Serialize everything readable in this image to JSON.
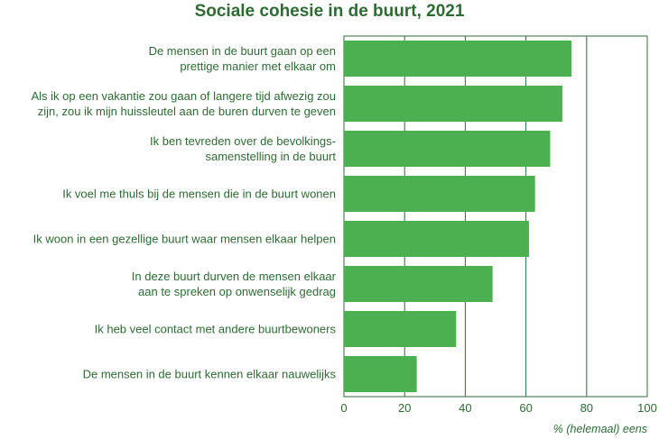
{
  "chart_data": {
    "type": "bar",
    "orientation": "horizontal",
    "title": "Sociale cohesie in de buurt, 2021",
    "xlabel": "% (helemaal) eens",
    "ylabel": "",
    "xlim": [
      0,
      100
    ],
    "xticks": [
      0,
      20,
      40,
      60,
      80,
      100
    ],
    "grid": true,
    "bar_color": "#4caf50",
    "text_color": "#2e6b34",
    "categories": [
      [
        "De mensen in de buurt gaan op een",
        "prettige manier met elkaar om"
      ],
      [
        "Als ik op een vakantie zou gaan of langere tijd afwezig zou",
        "zijn, zou ik mijn huissleutel aan de buren durven te geven"
      ],
      [
        "Ik ben tevreden over de  bevolkings-",
        "samenstelling in de buurt"
      ],
      [
        "Ik voel me thuls bij de mensen die in de buurt wonen"
      ],
      [
        "Ik woon in een gezellige buurt waar mensen elkaar helpen"
      ],
      [
        "In deze buurt durven de mensen elkaar",
        "aan te spreken op onwenselijk gedrag"
      ],
      [
        "Ik heb veel contact met andere buurtbewoners"
      ],
      [
        "De mensen in de buurt kennen elkaar nauwelijks"
      ]
    ],
    "values": [
      75,
      72,
      68,
      63,
      61,
      49,
      37,
      24
    ]
  }
}
